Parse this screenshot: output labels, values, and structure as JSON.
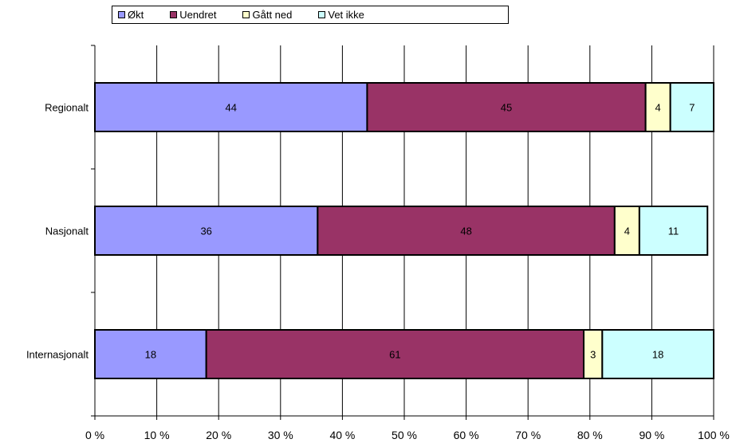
{
  "chart_data": {
    "type": "bar",
    "orientation": "horizontal",
    "stacked": "percent",
    "categories": [
      "Regionalt",
      "Nasjonalt",
      "Internasjonalt"
    ],
    "series": [
      {
        "name": "Økt",
        "values": [
          44,
          36,
          18
        ],
        "color": "#9999ff"
      },
      {
        "name": "Uendret",
        "values": [
          45,
          48,
          61
        ],
        "color": "#993366"
      },
      {
        "name": "Gått ned",
        "values": [
          4,
          4,
          3
        ],
        "color": "#ffffcc"
      },
      {
        "name": "Vet ikke",
        "values": [
          7,
          11,
          18
        ],
        "color": "#ccffff"
      }
    ],
    "x_ticks": [
      "0 %",
      "10 %",
      "20 %",
      "30 %",
      "40 %",
      "50 %",
      "60 %",
      "70 %",
      "80 %",
      "90 %",
      "100 %"
    ],
    "xlim": [
      0,
      100
    ],
    "grid": true,
    "legend_position": "top"
  }
}
